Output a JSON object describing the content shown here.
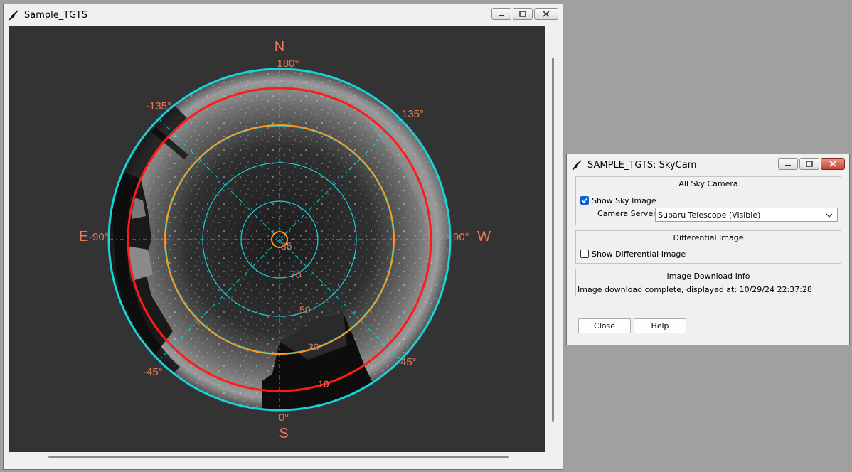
{
  "main_window": {
    "title": "Sample_TGTS",
    "sky_image": {
      "directions": {
        "north": "N",
        "south": "S",
        "east": "E",
        "west": "W"
      },
      "azimuth_labels": {
        "top": "180°",
        "bottom": "0°",
        "left": "-90°",
        "right": "90°",
        "top_left": "-135°",
        "top_right": "135°",
        "bottom_left": "-45°",
        "bottom_right": "45°"
      },
      "elevation_labels": [
        "85",
        "70",
        "50",
        "30",
        "10"
      ],
      "colors": {
        "grid": "#19d3da",
        "horizon_ring": "#ff1a1a",
        "elevation_ring": "#ff9a1a",
        "label": "#e8775c"
      }
    }
  },
  "skycam_window": {
    "title": "SAMPLE_TGTS: SkyCam",
    "all_sky": {
      "title": "All Sky Camera",
      "show_sky_image_label": "Show Sky Image",
      "show_sky_image_checked": true,
      "camera_server_label": "Camera Server:",
      "camera_server_value": "Subaru Telescope (Visible)"
    },
    "differential": {
      "title": "Differential Image",
      "show_differential_label": "Show Differential Image",
      "show_differential_checked": false
    },
    "download": {
      "title": "Image Download Info",
      "status": "Image download complete, displayed at: 10/29/24 22:37:28"
    },
    "buttons": {
      "close": "Close",
      "help": "Help"
    }
  }
}
